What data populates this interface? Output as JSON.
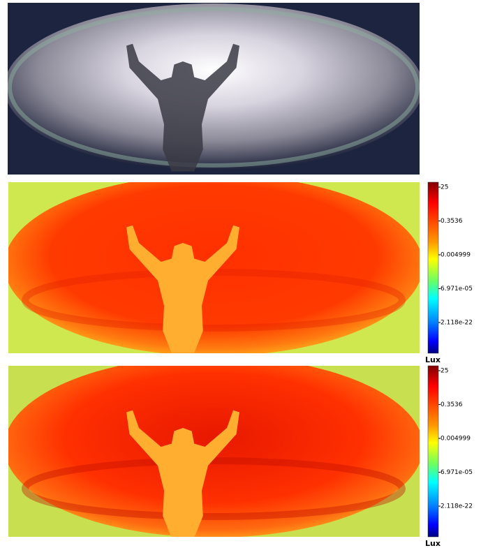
{
  "panels": [
    {
      "colorbar": {
        "ticks": [
          "25",
          "0.3536",
          "0.004999",
          "6.971e-05",
          "2.118e-22"
        ],
        "unit": "Lux"
      }
    },
    {
      "colorbar": {
        "ticks": [
          "25",
          "0.3536",
          "0.004999",
          "6.971e-05",
          "2.118e-22"
        ],
        "unit": "Lux"
      }
    }
  ]
}
